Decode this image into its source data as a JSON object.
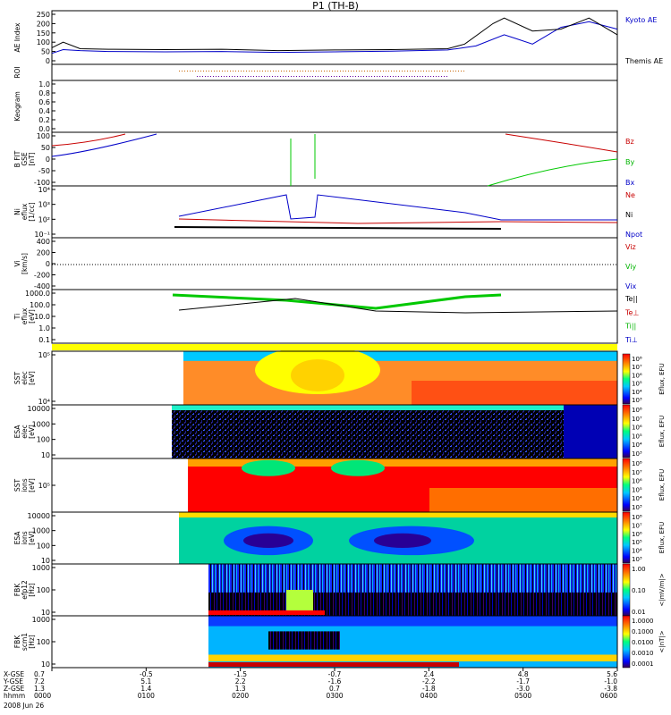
{
  "chart_data": {
    "type": "line",
    "title": "P1 (TH-B)",
    "panels": [
      {
        "id": "ae",
        "ylabel": [
          "AE Index"
        ],
        "yticks": [
          "250",
          "200",
          "150",
          "100",
          "50",
          "0"
        ],
        "legend": [
          {
            "text": "Kyoto AE",
            "color": "#0000c8"
          },
          {
            "text": "Themis AE",
            "color": "#000000"
          }
        ],
        "series": [
          {
            "name": "Kyoto AE",
            "color": "#0000c8",
            "points": [
              [
                0,
                40
              ],
              [
                0.02,
                60
              ],
              [
                0.05,
                55
              ],
              [
                0.1,
                50
              ],
              [
                0.2,
                48
              ],
              [
                0.3,
                50
              ],
              [
                0.4,
                45
              ],
              [
                0.5,
                48
              ],
              [
                0.6,
                52
              ],
              [
                0.7,
                58
              ],
              [
                0.75,
                80
              ],
              [
                0.8,
                140
              ],
              [
                0.82,
                120
              ],
              [
                0.85,
                90
              ],
              [
                0.9,
                180
              ],
              [
                0.95,
                210
              ],
              [
                1.0,
                170
              ]
            ]
          },
          {
            "name": "Themis AE",
            "color": "#000000",
            "points": [
              [
                0,
                70
              ],
              [
                0.02,
                100
              ],
              [
                0.05,
                65
              ],
              [
                0.1,
                62
              ],
              [
                0.2,
                60
              ],
              [
                0.3,
                62
              ],
              [
                0.4,
                55
              ],
              [
                0.5,
                58
              ],
              [
                0.6,
                60
              ],
              [
                0.7,
                65
              ],
              [
                0.73,
                90
              ],
              [
                0.78,
                200
              ],
              [
                0.8,
                230
              ],
              [
                0.85,
                160
              ],
              [
                0.9,
                170
              ],
              [
                0.95,
                230
              ],
              [
                1.0,
                140
              ]
            ]
          }
        ]
      },
      {
        "id": "roi",
        "ylabel": [
          "ROI"
        ],
        "yticks": []
      },
      {
        "id": "keogram",
        "ylabel": [
          "Keogram"
        ],
        "yticks": [
          "1.0",
          "0.8",
          "0.6",
          "0.4",
          "0.2",
          "0.0"
        ]
      },
      {
        "id": "bfit",
        "ylabel": [
          "B FIT",
          "GSE",
          "[nT]"
        ],
        "yticks": [
          "100",
          "50",
          "0",
          "-50",
          "-100"
        ],
        "legend": [
          {
            "text": "Bz",
            "color": "#c80000"
          },
          {
            "text": "By",
            "color": "#00b400"
          },
          {
            "text": "Bx",
            "color": "#0000c8"
          }
        ]
      },
      {
        "id": "ni",
        "ylabel": [
          "Ni",
          "eflux",
          "[1/cc]"
        ],
        "yticks": [
          "10⁴",
          "10³",
          "10²",
          "10⁻¹"
        ],
        "legend": [
          {
            "text": "Ne",
            "color": "#c80000"
          },
          {
            "text": "Ni",
            "color": "#000000"
          },
          {
            "text": "Npot",
            "color": "#0000c8"
          }
        ]
      },
      {
        "id": "vi",
        "ylabel": [
          "Vi",
          "[km/s]"
        ],
        "yticks": [
          "400",
          "200",
          "0",
          "-200",
          "-400"
        ],
        "legend": [
          {
            "text": "Viz",
            "color": "#c80000"
          },
          {
            "text": "Viy",
            "color": "#00b400"
          },
          {
            "text": "Vix",
            "color": "#0000c8"
          }
        ]
      },
      {
        "id": "ti",
        "ylabel": [
          "Ti",
          "eflux",
          "[eV]"
        ],
        "yticks": [
          "1000.0",
          "100.0",
          "10.0",
          "1.0",
          "0.1"
        ],
        "legend": [
          {
            "text": "Te||",
            "color": "#000000"
          },
          {
            "text": "Te⊥",
            "color": "#c80000"
          },
          {
            "text": "Ti||",
            "color": "#00b400"
          },
          {
            "text": "Ti⊥",
            "color": "#0000c8"
          }
        ]
      },
      {
        "id": "sst_e",
        "ylabel": [
          "SST",
          "elec",
          "[eV]"
        ],
        "yticks": [
          "10⁵",
          "10⁴"
        ]
      },
      {
        "id": "esa_e",
        "ylabel": [
          "ESA",
          "elec",
          "[eV]"
        ],
        "yticks": [
          "10000",
          "1000",
          "100",
          "10"
        ]
      },
      {
        "id": "sst_i",
        "ylabel": [
          "SST",
          "ions",
          "[eV]"
        ],
        "yticks": [
          "10⁵"
        ]
      },
      {
        "id": "esa_i",
        "ylabel": [
          "ESA",
          "ions",
          "[eV]"
        ],
        "yticks": [
          "10000",
          "1000",
          "100",
          "10"
        ]
      },
      {
        "id": "fbk_e",
        "ylabel": [
          "FBK",
          "efp12",
          "[Hz]"
        ],
        "yticks": [
          "1000",
          "100",
          "10"
        ]
      },
      {
        "id": "fbk_b",
        "ylabel": [
          "FBK",
          "scm1",
          "[Hz]"
        ],
        "yticks": [
          "1000",
          "100",
          "10"
        ]
      }
    ],
    "colorbars": [
      {
        "id": "cb1",
        "ticks": [
          "10⁸",
          "10⁷",
          "10⁶",
          "10⁵",
          "10⁴",
          "10³"
        ],
        "label": "Eflux, EFU"
      },
      {
        "id": "cb2",
        "ticks": [
          "10⁸",
          "10⁷",
          "10⁶",
          "10⁵",
          "10⁴",
          "10³"
        ],
        "label": "Eflux, EFU"
      },
      {
        "id": "cb3",
        "ticks": [
          "10⁸",
          "10⁷",
          "10⁶",
          "10⁵",
          "10⁴",
          "10³"
        ],
        "label": "Eflux, EFU"
      },
      {
        "id": "cb4",
        "ticks": [
          "10⁸",
          "10⁷",
          "10⁶",
          "10⁵",
          "10⁴",
          "10³"
        ],
        "label": "Eflux, EFU"
      },
      {
        "id": "cb5",
        "ticks": [
          "1.00",
          "0.10",
          "0.01"
        ],
        "label": "<|mV/m|>"
      },
      {
        "id": "cb6",
        "ticks": [
          "1.0000",
          "0.1000",
          "0.0100",
          "0.0010",
          "0.0001"
        ],
        "label": "<|nT|>"
      }
    ],
    "xaxis": {
      "rows": [
        {
          "label": "X-GSE",
          "values": [
            "0.7",
            "-0.5",
            "-1.5",
            "-0.7",
            "2.4",
            "4.8",
            "5.6"
          ]
        },
        {
          "label": "Y-GSE",
          "values": [
            "7.2",
            "5.1",
            "2.2",
            "-1.6",
            "-2.2",
            "-1.7",
            "-1.0"
          ]
        },
        {
          "label": "Z-GSE",
          "values": [
            "1.3",
            "1.4",
            "1.3",
            "0.7",
            "-1.8",
            "-3.0",
            "-3.8"
          ]
        },
        {
          "label": "hhmm",
          "values": [
            "0000",
            "0100",
            "0200",
            "0300",
            "0400",
            "0500",
            "0600"
          ]
        }
      ],
      "date": "2008 Jun 26"
    }
  }
}
